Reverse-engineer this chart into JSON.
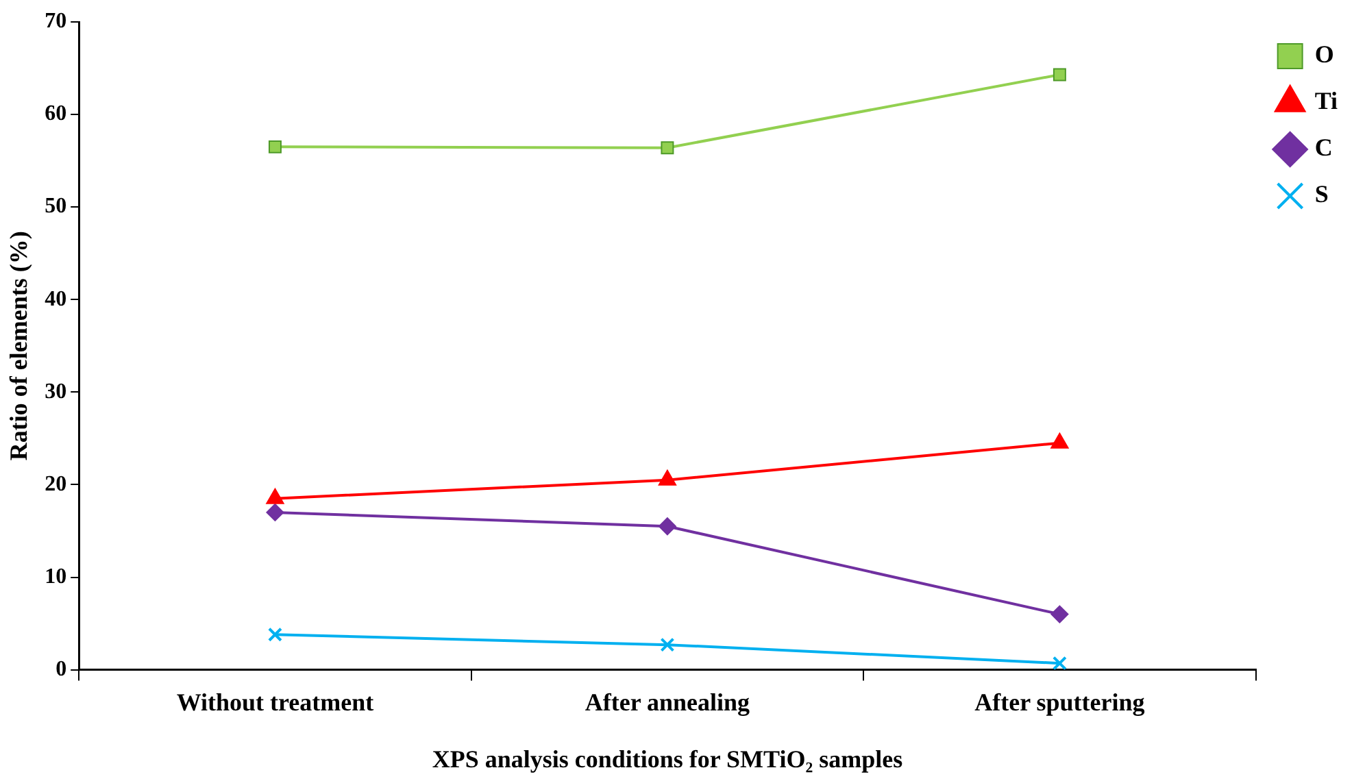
{
  "chart_data": {
    "type": "line",
    "xlabel": "XPS analysis conditions for SMTiO₂ samples",
    "ylabel": "Ratio of elements (%)",
    "categories": [
      "Without treatment",
      "After annealing",
      "After sputtering"
    ],
    "series": [
      {
        "name": "O",
        "color": "#92d050",
        "marker": "square",
        "values": [
          56.5,
          56.4,
          64.3
        ]
      },
      {
        "name": "Ti",
        "color": "#ff0000",
        "marker": "triangle",
        "values": [
          18.5,
          20.5,
          24.5
        ]
      },
      {
        "name": "C",
        "color": "#7030a0",
        "marker": "diamond",
        "values": [
          17.0,
          15.5,
          6.0
        ]
      },
      {
        "name": "S",
        "color": "#00b0f0",
        "marker": "cross",
        "values": [
          3.8,
          2.7,
          0.7
        ]
      }
    ],
    "ylim": [
      0,
      70
    ],
    "yticks": [
      0,
      10,
      20,
      30,
      40,
      50,
      60,
      70
    ],
    "grid": false,
    "legend": "top right"
  }
}
